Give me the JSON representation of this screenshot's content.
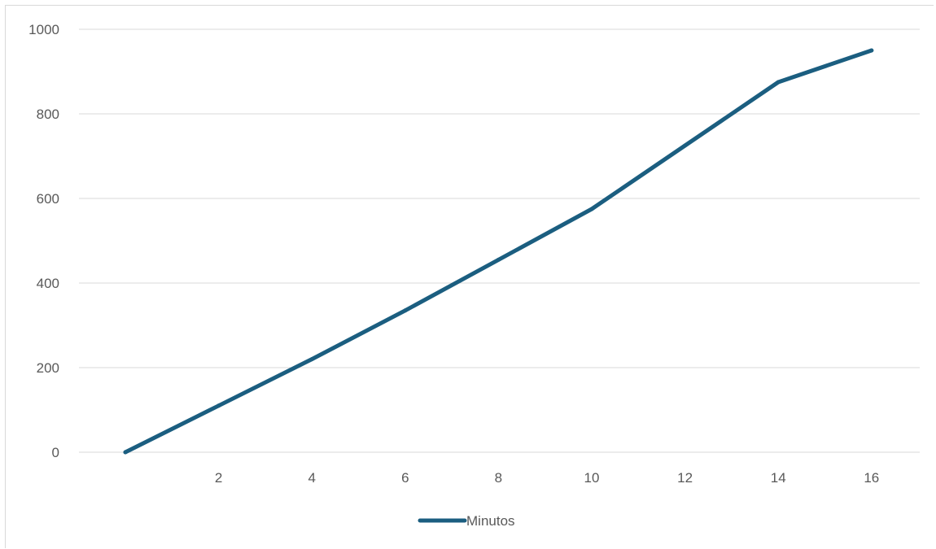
{
  "chart_data": {
    "type": "line",
    "title": "",
    "xlabel": "",
    "ylabel": "",
    "x_tick_labels": [
      "2",
      "4",
      "6",
      "8",
      "10",
      "12",
      "14",
      "16"
    ],
    "y_tick_labels": [
      "0",
      "200",
      "400",
      "600",
      "800",
      "1000"
    ],
    "ylim": [
      0,
      1000
    ],
    "xlim": [
      0,
      16
    ],
    "grid": "horizontal",
    "legend_position": "bottom",
    "series": [
      {
        "name": "Minutos",
        "color": "#1b5e80",
        "x": [
          0,
          2,
          4,
          6,
          8,
          10,
          12,
          14,
          16
        ],
        "y": [
          0,
          110,
          220,
          335,
          455,
          575,
          725,
          875,
          950
        ]
      }
    ]
  }
}
